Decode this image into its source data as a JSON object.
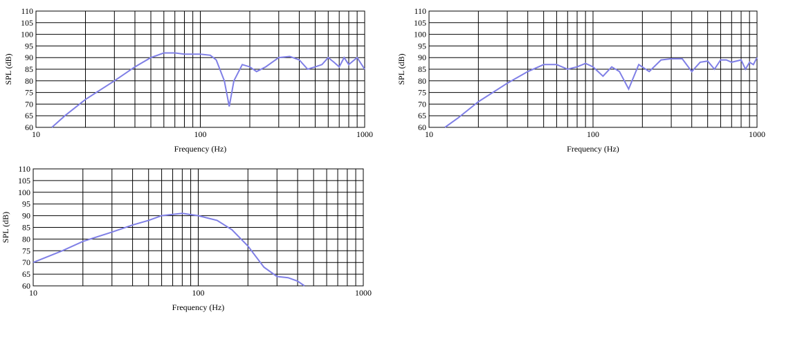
{
  "chart_data": [
    {
      "type": "line",
      "xlabel": "Frequency (Hz)",
      "ylabel": "SPL (dB)",
      "xscale": "log",
      "xlim": [
        10,
        1000
      ],
      "ylim": [
        60,
        110
      ],
      "xticks": [
        10,
        100,
        1000
      ],
      "xgrid": [
        20,
        30,
        40,
        50,
        60,
        70,
        80,
        90,
        200,
        300,
        400,
        500,
        600,
        700,
        800,
        900
      ],
      "yticks": [
        60,
        65,
        70,
        75,
        80,
        85,
        90,
        95,
        100,
        105,
        110
      ],
      "grid": true,
      "series": [
        {
          "color": "#7f7fe6",
          "x": [
            12.5,
            15,
            20,
            30,
            40,
            50,
            60,
            70,
            80,
            100,
            115,
            125,
            140,
            150,
            160,
            180,
            200,
            220,
            250,
            300,
            350,
            400,
            450,
            500,
            550,
            600,
            650,
            700,
            750,
            800,
            900,
            1000
          ],
          "values": [
            60,
            65,
            72,
            80,
            86,
            90,
            92,
            92,
            91.5,
            91.5,
            91,
            89,
            80,
            69,
            80,
            87,
            86,
            84,
            86,
            90,
            90.5,
            89,
            85,
            86,
            87,
            90,
            88,
            86,
            90,
            87,
            90,
            85
          ]
        }
      ]
    },
    {
      "type": "line",
      "xlabel": "Frequency (Hz)",
      "ylabel": "SPL (dB)",
      "xscale": "log",
      "xlim": [
        10,
        1000
      ],
      "ylim": [
        60,
        110
      ],
      "xticks": [
        10,
        100,
        1000
      ],
      "xgrid": [
        20,
        30,
        40,
        50,
        60,
        70,
        80,
        90,
        200,
        300,
        400,
        500,
        600,
        700,
        800,
        900
      ],
      "yticks": [
        60,
        65,
        70,
        75,
        80,
        85,
        90,
        95,
        100,
        105,
        110
      ],
      "grid": true,
      "series": [
        {
          "color": "#7f7fe6",
          "x": [
            12.5,
            15,
            20,
            30,
            40,
            50,
            60,
            70,
            80,
            90,
            100,
            115,
            130,
            145,
            165,
            190,
            220,
            260,
            300,
            350,
            400,
            450,
            500,
            550,
            600,
            650,
            700,
            800,
            850,
            900,
            950,
            1000
          ],
          "values": [
            60,
            64,
            71,
            79,
            84,
            87,
            87,
            85,
            86,
            87.5,
            86,
            82,
            86,
            84,
            76.5,
            87,
            84,
            89,
            89.5,
            89.5,
            84,
            88,
            88.5,
            85,
            89,
            89,
            88,
            89,
            85,
            88,
            87,
            90
          ]
        }
      ]
    },
    {
      "type": "line",
      "xlabel": "Frequency (Hz)",
      "ylabel": "SPL (dB)",
      "xscale": "log",
      "xlim": [
        10,
        1000
      ],
      "ylim": [
        60,
        110
      ],
      "xticks": [
        10,
        100,
        1000
      ],
      "xgrid": [
        20,
        30,
        40,
        50,
        60,
        70,
        80,
        90,
        200,
        300,
        400,
        500,
        600,
        700,
        800,
        900
      ],
      "yticks": [
        60,
        65,
        70,
        75,
        80,
        85,
        90,
        95,
        100,
        105,
        110
      ],
      "grid": true,
      "series": [
        {
          "color": "#7f7fe6",
          "x": [
            10,
            15,
            20,
            30,
            40,
            50,
            60,
            80,
            100,
            130,
            160,
            200,
            250,
            300,
            350,
            400,
            440
          ],
          "values": [
            70,
            75,
            79,
            83,
            86,
            88,
            90,
            91,
            90,
            88,
            84,
            77,
            68,
            64,
            63.5,
            62,
            60
          ]
        }
      ]
    }
  ]
}
